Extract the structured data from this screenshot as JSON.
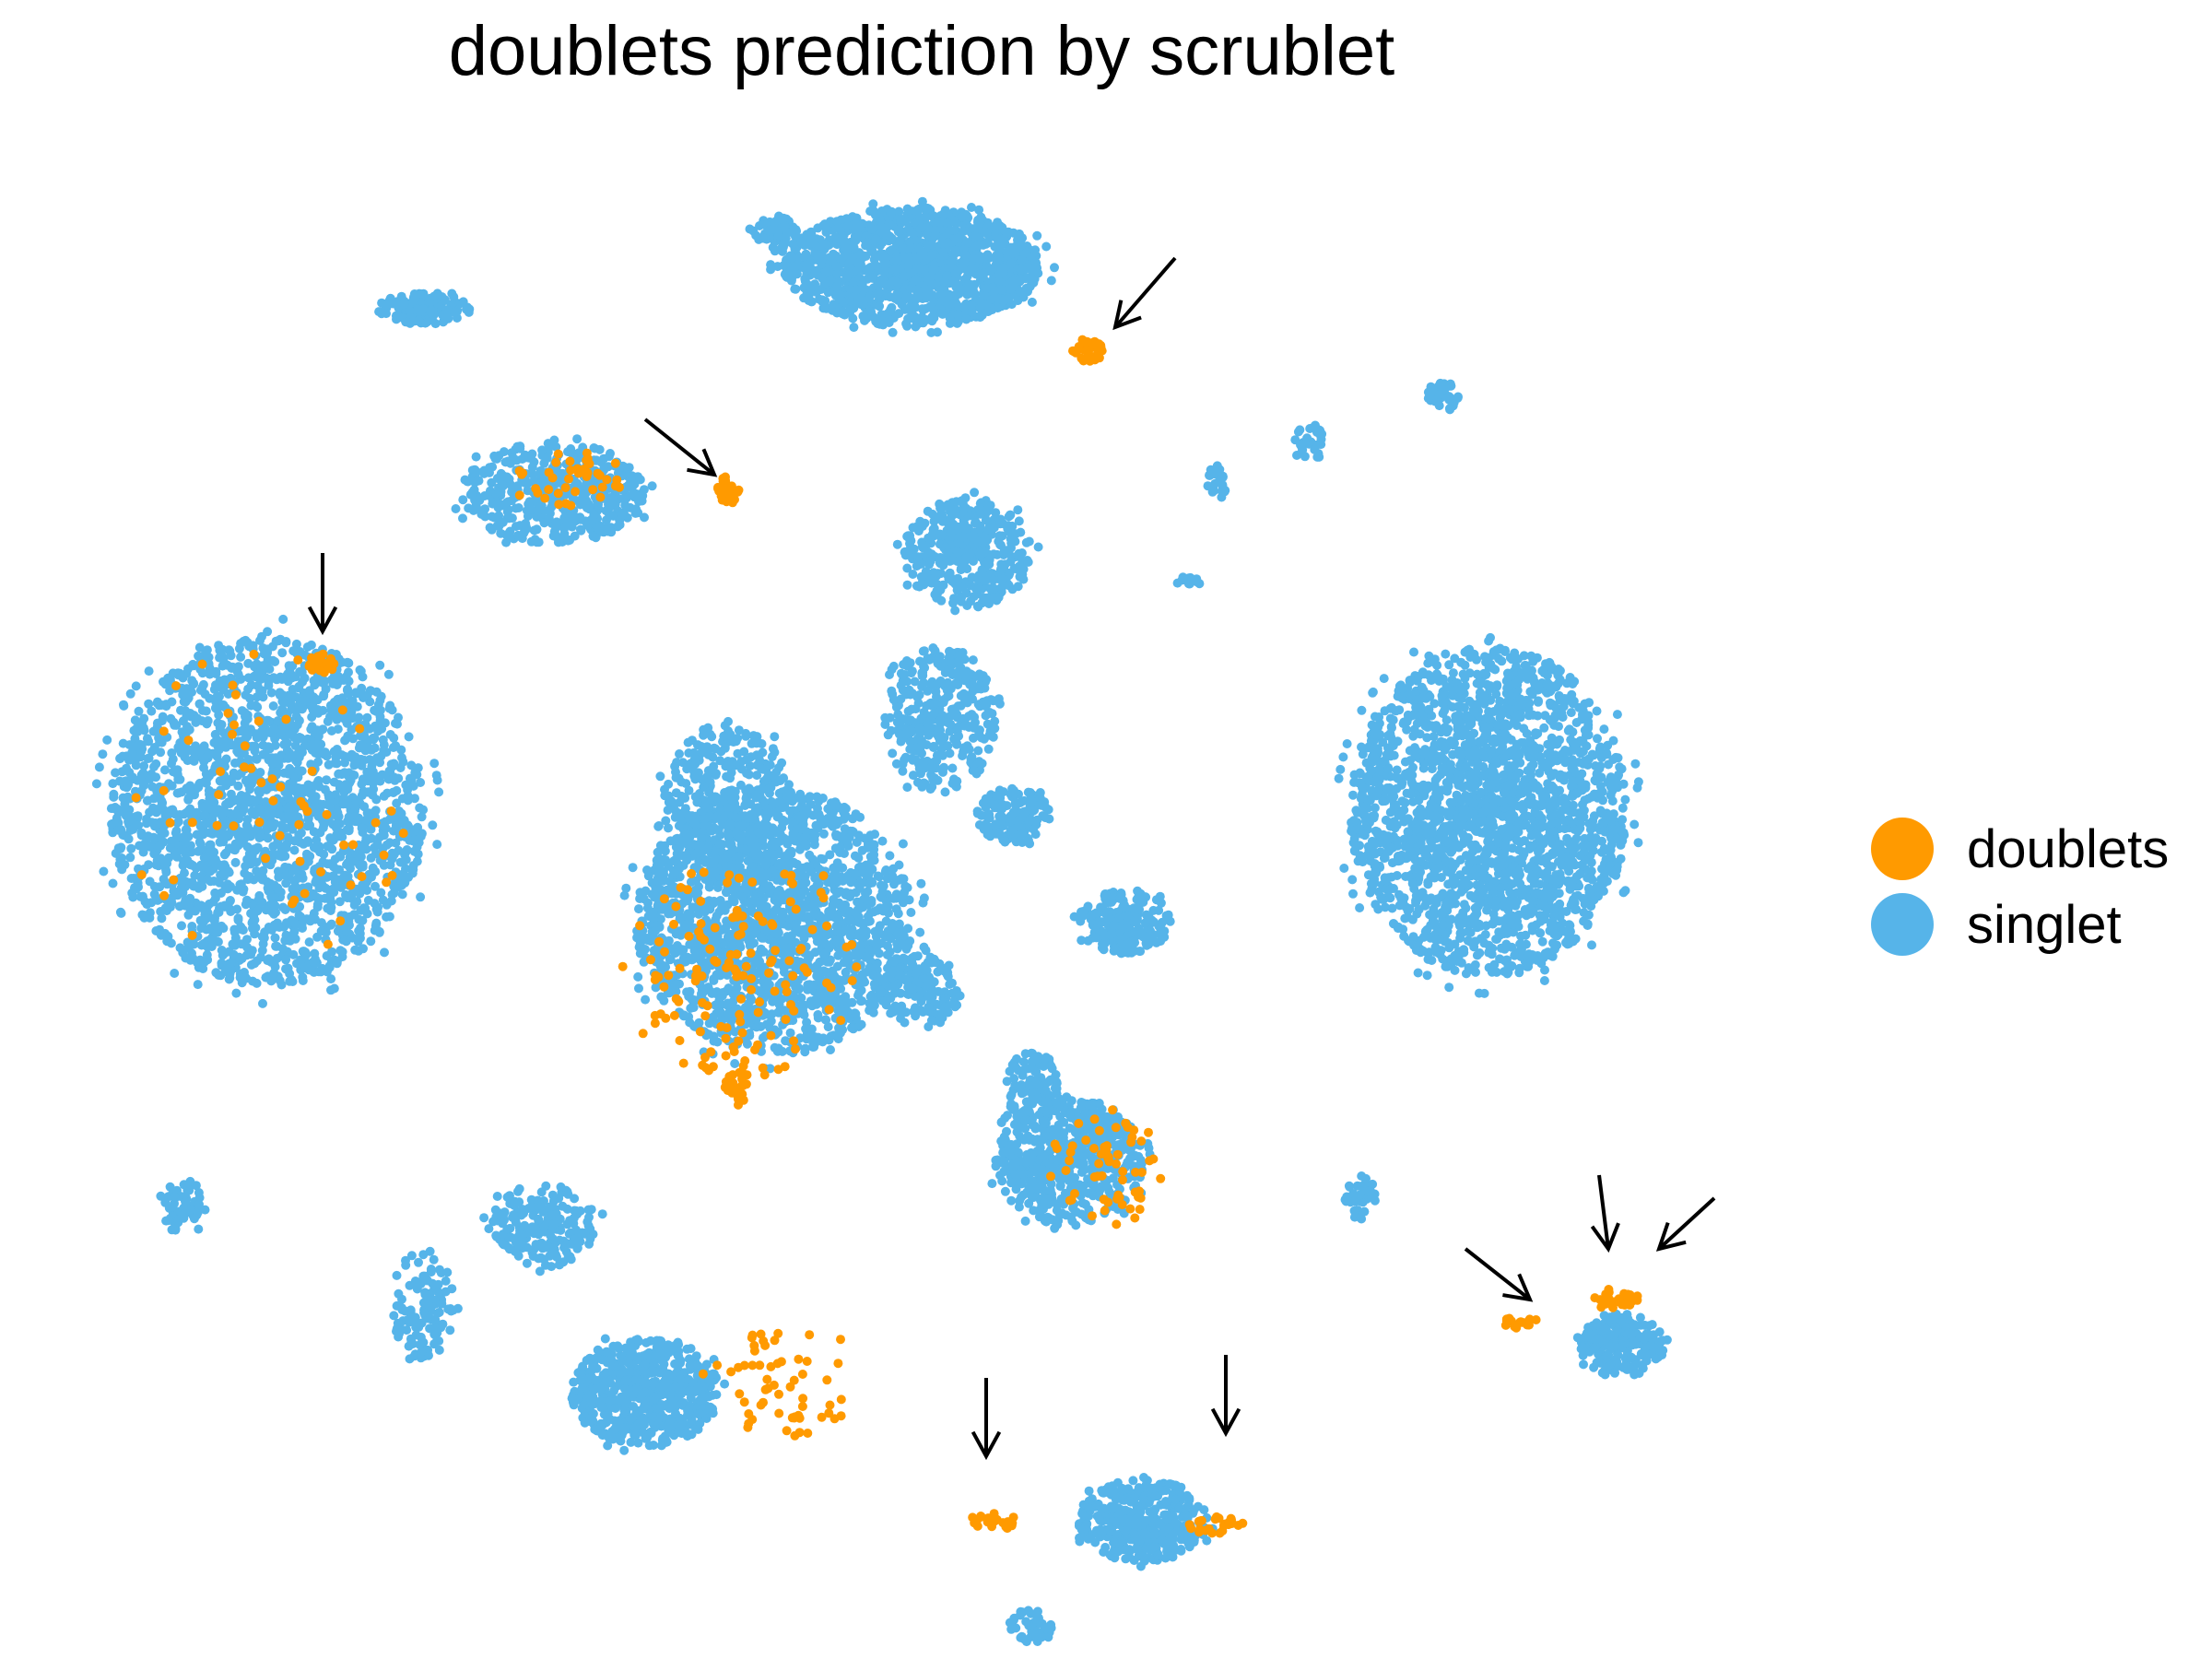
{
  "chart_data": {
    "type": "scatter",
    "title": "doublets prediction by scrublet",
    "xlabel": "",
    "ylabel": "",
    "axes_visible": false,
    "grid": false,
    "legend_position": "right",
    "legend": [
      {
        "label": "doublets",
        "color": "#FF9A00"
      },
      {
        "label": "singlet",
        "color": "#56B4E9"
      }
    ],
    "series": [
      {
        "name": "singlet",
        "color": "#56B4E9",
        "clusters": [
          {
            "cx": 990,
            "cy": 290,
            "rx": 140,
            "ry": 65,
            "n": 1400
          },
          {
            "cx": 460,
            "cy": 335,
            "rx": 50,
            "ry": 18,
            "n": 140
          },
          {
            "cx": 600,
            "cy": 535,
            "rx": 100,
            "ry": 55,
            "n": 500
          },
          {
            "cx": 290,
            "cy": 880,
            "rx": 170,
            "ry": 190,
            "n": 2200
          },
          {
            "cx": 840,
            "cy": 1000,
            "rx": 150,
            "ry": 145,
            "n": 1800
          },
          {
            "cx": 790,
            "cy": 870,
            "rx": 70,
            "ry": 85,
            "n": 400
          },
          {
            "cx": 1050,
            "cy": 600,
            "rx": 70,
            "ry": 60,
            "n": 400
          },
          {
            "cx": 1020,
            "cy": 780,
            "rx": 60,
            "ry": 80,
            "n": 350
          },
          {
            "cx": 1615,
            "cy": 880,
            "rx": 150,
            "ry": 180,
            "n": 2200
          },
          {
            "cx": 1100,
            "cy": 885,
            "rx": 40,
            "ry": 30,
            "n": 150
          },
          {
            "cx": 1220,
            "cy": 1000,
            "rx": 50,
            "ry": 35,
            "n": 200
          },
          {
            "cx": 1000,
            "cy": 1075,
            "rx": 45,
            "ry": 40,
            "n": 150
          },
          {
            "cx": 1160,
            "cy": 1260,
            "rx": 80,
            "ry": 70,
            "n": 600
          },
          {
            "cx": 1120,
            "cy": 1180,
            "rx": 30,
            "ry": 40,
            "n": 120
          },
          {
            "cx": 590,
            "cy": 1330,
            "rx": 60,
            "ry": 45,
            "n": 200
          },
          {
            "cx": 700,
            "cy": 1510,
            "rx": 80,
            "ry": 60,
            "n": 600
          },
          {
            "cx": 1240,
            "cy": 1650,
            "rx": 70,
            "ry": 45,
            "n": 400
          },
          {
            "cx": 1760,
            "cy": 1460,
            "rx": 45,
            "ry": 35,
            "n": 200
          },
          {
            "cx": 200,
            "cy": 1310,
            "rx": 25,
            "ry": 30,
            "n": 60
          },
          {
            "cx": 460,
            "cy": 1415,
            "rx": 35,
            "ry": 60,
            "n": 120
          },
          {
            "cx": 1120,
            "cy": 1765,
            "rx": 25,
            "ry": 20,
            "n": 40
          },
          {
            "cx": 1565,
            "cy": 430,
            "rx": 20,
            "ry": 15,
            "n": 40
          },
          {
            "cx": 1420,
            "cy": 480,
            "rx": 20,
            "ry": 20,
            "n": 30
          },
          {
            "cx": 1320,
            "cy": 525,
            "rx": 10,
            "ry": 20,
            "n": 20
          },
          {
            "cx": 1290,
            "cy": 630,
            "rx": 15,
            "ry": 6,
            "n": 15
          },
          {
            "cx": 1475,
            "cy": 1300,
            "rx": 18,
            "ry": 25,
            "n": 40
          },
          {
            "cx": 845,
            "cy": 255,
            "rx": 30,
            "ry": 20,
            "n": 60
          }
        ]
      },
      {
        "name": "doublets",
        "color": "#FF9A00",
        "clusters": [
          {
            "cx": 1180,
            "cy": 380,
            "rx": 18,
            "ry": 12,
            "n": 40
          },
          {
            "cx": 790,
            "cy": 530,
            "rx": 12,
            "ry": 15,
            "n": 30
          },
          {
            "cx": 350,
            "cy": 720,
            "rx": 15,
            "ry": 12,
            "n": 30
          },
          {
            "cx": 800,
            "cy": 1180,
            "rx": 15,
            "ry": 20,
            "n": 25
          },
          {
            "cx": 1080,
            "cy": 1650,
            "rx": 30,
            "ry": 8,
            "n": 25
          },
          {
            "cx": 1320,
            "cy": 1655,
            "rx": 30,
            "ry": 10,
            "n": 25
          },
          {
            "cx": 1650,
            "cy": 1435,
            "rx": 20,
            "ry": 6,
            "n": 15
          },
          {
            "cx": 1755,
            "cy": 1410,
            "rx": 25,
            "ry": 12,
            "n": 25
          },
          {
            "cx": 800,
            "cy": 1050,
            "rx": 130,
            "ry": 120,
            "n": 140
          },
          {
            "cx": 620,
            "cy": 520,
            "rx": 60,
            "ry": 30,
            "n": 40
          },
          {
            "cx": 850,
            "cy": 1500,
            "rx": 80,
            "ry": 60,
            "n": 60
          },
          {
            "cx": 1200,
            "cy": 1270,
            "rx": 70,
            "ry": 60,
            "n": 60
          },
          {
            "cx": 290,
            "cy": 880,
            "rx": 160,
            "ry": 180,
            "n": 60
          }
        ]
      }
    ],
    "annotations": [
      {
        "type": "arrow",
        "label": "",
        "target": "doublet cluster upper-middle"
      },
      {
        "type": "arrow",
        "label": "",
        "target": "doublet cluster left-middle"
      },
      {
        "type": "arrow",
        "label": "",
        "target": "doublet cluster top of left cluster"
      },
      {
        "type": "arrow",
        "label": "",
        "target": "doublets bottom-middle left"
      },
      {
        "type": "arrow",
        "label": "",
        "target": "doublets bottom-middle right"
      },
      {
        "type": "arrow",
        "label": "",
        "target": "doublets bottom-right left"
      },
      {
        "type": "arrow",
        "label": "",
        "target": "doublets bottom-right center"
      },
      {
        "type": "arrow",
        "label": "",
        "target": "doublets bottom-right right"
      }
    ]
  }
}
